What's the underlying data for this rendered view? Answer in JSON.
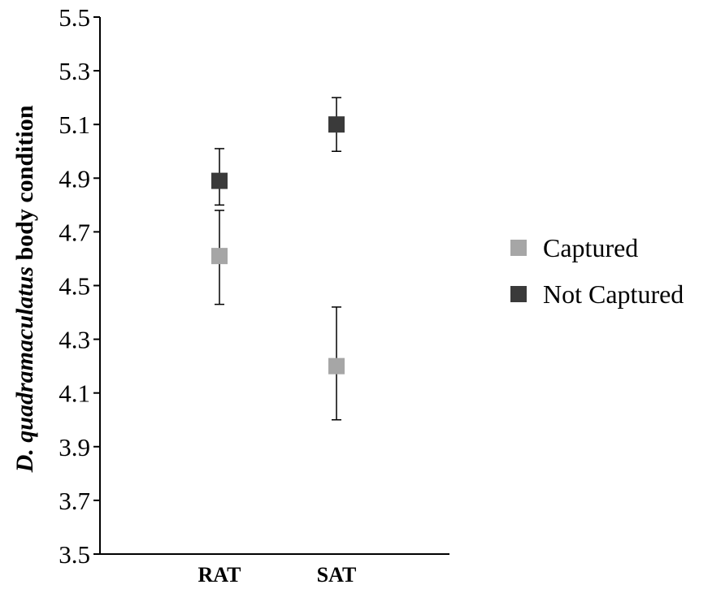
{
  "chart_data": {
    "type": "scatter",
    "categories": [
      "RAT",
      "SAT"
    ],
    "ylabel_italic": "D. quadramaculatus",
    "ylabel_rest": " body condition",
    "ylim": [
      3.5,
      5.5
    ],
    "yticks": [
      "3.5",
      "3.7",
      "3.9",
      "4.1",
      "4.3",
      "4.5",
      "4.7",
      "4.9",
      "5.1",
      "5.3",
      "5.5"
    ],
    "grid": false,
    "legend_position": "right",
    "series": [
      {
        "name": "Captured",
        "color": "#a6a6a6",
        "values": [
          4.61,
          4.2
        ],
        "err_low": [
          4.43,
          4.0
        ],
        "err_high": [
          4.78,
          4.42
        ]
      },
      {
        "name": "Not Captured",
        "color": "#3a3a3a",
        "values": [
          4.89,
          5.1
        ],
        "err_low": [
          4.8,
          5.0
        ],
        "err_high": [
          5.01,
          5.2
        ]
      }
    ]
  }
}
